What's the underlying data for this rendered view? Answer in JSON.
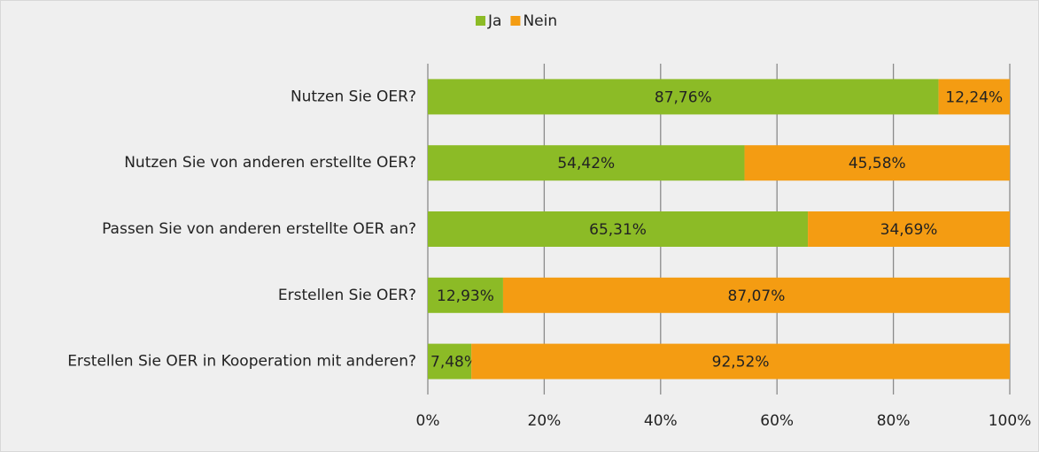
{
  "chart_data": {
    "type": "stacked-bar-horizontal",
    "categories": [
      "Nutzen Sie OER?",
      "Nutzen Sie von anderen erstellte OER?",
      "Passen Sie von anderen erstellte OER an?",
      "Erstellen Sie OER?",
      "Erstellen Sie OER in Kooperation mit anderen?"
    ],
    "series": [
      {
        "name": "Ja",
        "color": "#8cbb26",
        "values": [
          87.76,
          54.42,
          65.31,
          12.93,
          7.48
        ],
        "value_labels": [
          "87,76%",
          "54,42%",
          "65,31%",
          "12,93%",
          "7,48%"
        ]
      },
      {
        "name": "Nein",
        "color": "#f49c12",
        "values": [
          12.24,
          45.58,
          34.69,
          87.07,
          92.52
        ],
        "value_labels": [
          "12,24%",
          "45,58%",
          "34,69%",
          "87,07%",
          "92,52%"
        ]
      }
    ],
    "xlim": [
      0,
      100
    ],
    "xticks": [
      {
        "value": 0,
        "label": "0%"
      },
      {
        "value": 20,
        "label": "20%"
      },
      {
        "value": 40,
        "label": "40%"
      },
      {
        "value": 60,
        "label": "60%"
      },
      {
        "value": 80,
        "label": "80%"
      },
      {
        "value": 100,
        "label": "100%"
      }
    ],
    "grid": true,
    "legend": "top"
  }
}
